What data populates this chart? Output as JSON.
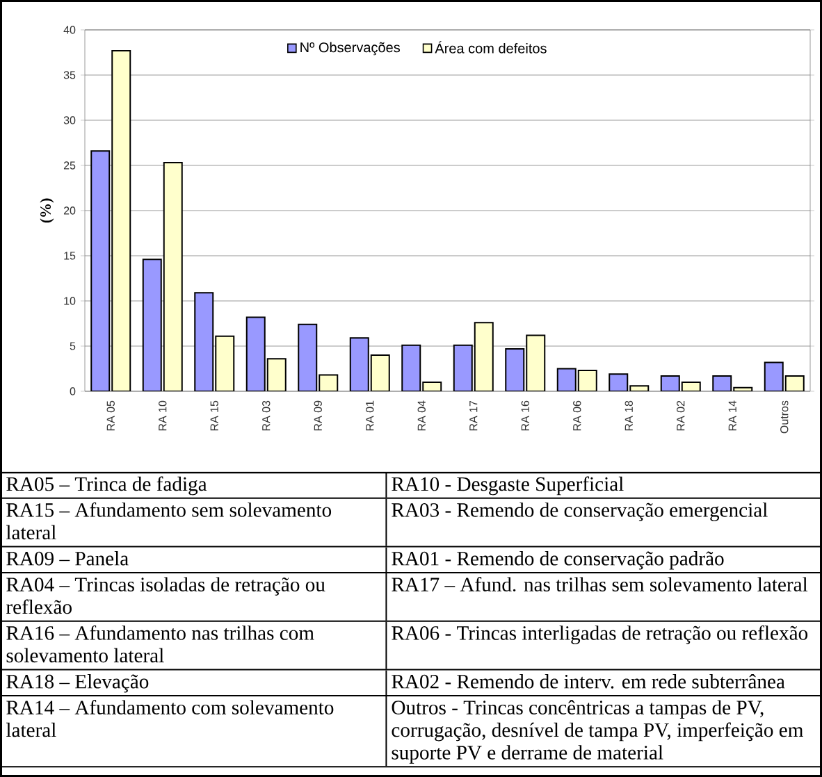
{
  "chart_data": {
    "type": "bar",
    "ylabel": "(%)",
    "categories": [
      "RA 05",
      "RA 10",
      "RA 15",
      "RA 03",
      "RA 09",
      "RA 01",
      "RA 04",
      "RA 17",
      "RA 16",
      "RA 06",
      "RA 18",
      "RA 02",
      "RA 14",
      "Outros"
    ],
    "series": [
      {
        "name": "Nº Observações",
        "color": "#9999ff",
        "values": [
          26.6,
          14.6,
          10.9,
          8.2,
          7.4,
          5.9,
          5.1,
          5.1,
          4.7,
          2.5,
          1.9,
          1.7,
          1.7,
          3.2
        ]
      },
      {
        "name": "Área com defeitos",
        "color": "#ffffcc",
        "values": [
          37.7,
          25.3,
          6.1,
          3.6,
          1.8,
          4.0,
          1.0,
          7.6,
          6.2,
          2.3,
          0.6,
          1.0,
          0.4,
          1.7
        ]
      }
    ],
    "ylim": [
      0,
      40
    ],
    "yticks": [
      0,
      5,
      10,
      15,
      20,
      25,
      30,
      35,
      40
    ],
    "grid": "y",
    "legend": "top",
    "annotations": [
      "RA05 – Trinca de fadiga",
      "RA10 - Desgaste Superficial",
      "RA15 – Afundamento sem solevamento lateral",
      "RA03 - Remendo de conservação emergencial",
      "RA09 – Panela",
      "RA01 - Remendo de conservação padrão",
      "RA04 – Trincas isoladas de retração ou reflexão",
      "RA17 – Afund. nas trilhas sem solevamento lateral",
      "RA16 – Afundamento nas trilhas com solevamento lateral",
      "RA06 - Trincas interligadas de retração ou reflexão",
      "RA18 – Elevação",
      "RA02 - Remendo de interv. em rede subterrânea",
      "RA14 – Afundamento com solevamento lateral",
      "Outros - Trincas concêntricas a tampas de PV, corrugação, desnível de tampa PV, imperfeição em suporte PV e derrame de material"
    ]
  }
}
